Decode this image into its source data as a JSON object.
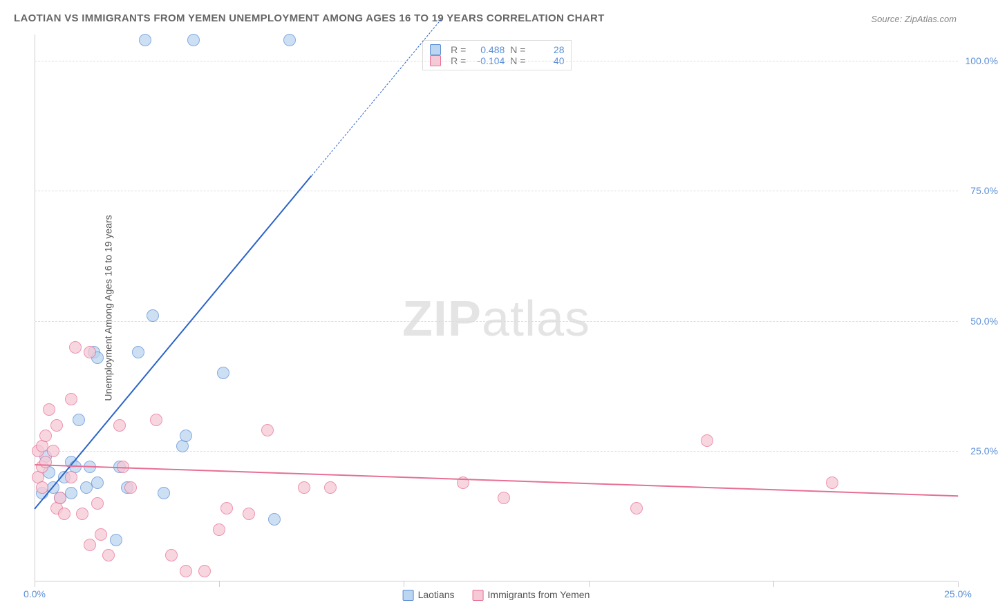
{
  "title": "LAOTIAN VS IMMIGRANTS FROM YEMEN UNEMPLOYMENT AMONG AGES 16 TO 19 YEARS CORRELATION CHART",
  "source": "Source: ZipAtlas.com",
  "y_label": "Unemployment Among Ages 16 to 19 years",
  "watermark_a": "ZIP",
  "watermark_b": "atlas",
  "chart": {
    "type": "scatter",
    "background_color": "#ffffff",
    "grid_color": "#dddddd",
    "axis_color": "#cccccc",
    "xlim": [
      0,
      25
    ],
    "ylim": [
      0,
      105
    ],
    "y_ticks": [
      25,
      50,
      75,
      100
    ],
    "y_tick_labels": [
      "25.0%",
      "50.0%",
      "75.0%",
      "100.0%"
    ],
    "x_ticks": [
      0,
      5,
      10,
      15,
      20,
      25
    ],
    "x_tick_labels": [
      "0.0%",
      "",
      "",
      "",
      "",
      "25.0%"
    ],
    "y_tick_color": "#5b8fd6",
    "x_tick_color": "#5b8fd6",
    "marker_radius": 9,
    "series": [
      {
        "name": "Laotians",
        "fill": "#bcd5f0",
        "stroke": "#5b8fd6",
        "points": [
          [
            0.2,
            17
          ],
          [
            0.3,
            24
          ],
          [
            0.4,
            21
          ],
          [
            0.5,
            18
          ],
          [
            0.7,
            16
          ],
          [
            0.8,
            20
          ],
          [
            1.0,
            17
          ],
          [
            1.0,
            23
          ],
          [
            1.1,
            22
          ],
          [
            1.2,
            31
          ],
          [
            1.4,
            18
          ],
          [
            1.5,
            22
          ],
          [
            1.6,
            44
          ],
          [
            1.7,
            43
          ],
          [
            1.7,
            19
          ],
          [
            2.2,
            8
          ],
          [
            2.3,
            22
          ],
          [
            2.5,
            18
          ],
          [
            2.8,
            44
          ],
          [
            3.2,
            51
          ],
          [
            3.5,
            17
          ],
          [
            3.0,
            104
          ],
          [
            4.0,
            26
          ],
          [
            4.1,
            28
          ],
          [
            4.3,
            104
          ],
          [
            5.1,
            40
          ],
          [
            6.5,
            12
          ],
          [
            6.9,
            104
          ]
        ],
        "trend": {
          "x1": 0,
          "y1": 14,
          "x2": 7.5,
          "y2": 78,
          "dash_after_x": 7.2,
          "dash_end_x": 11,
          "dash_end_y": 108,
          "color": "#2b63c9",
          "width": 2
        },
        "stats": {
          "R": "0.488",
          "N": "28"
        }
      },
      {
        "name": "Immigrants from Yemen",
        "fill": "#f6c9d6",
        "stroke": "#e76f94",
        "points": [
          [
            0.1,
            20
          ],
          [
            0.1,
            25
          ],
          [
            0.2,
            22
          ],
          [
            0.2,
            26
          ],
          [
            0.2,
            18
          ],
          [
            0.3,
            23
          ],
          [
            0.3,
            28
          ],
          [
            0.4,
            33
          ],
          [
            0.5,
            25
          ],
          [
            0.6,
            14
          ],
          [
            0.6,
            30
          ],
          [
            0.7,
            16
          ],
          [
            0.8,
            13
          ],
          [
            1.0,
            20
          ],
          [
            1.0,
            35
          ],
          [
            1.1,
            45
          ],
          [
            1.5,
            44
          ],
          [
            1.3,
            13
          ],
          [
            1.5,
            7
          ],
          [
            1.7,
            15
          ],
          [
            1.8,
            9
          ],
          [
            2.0,
            5
          ],
          [
            2.3,
            30
          ],
          [
            2.4,
            22
          ],
          [
            2.6,
            18
          ],
          [
            3.3,
            31
          ],
          [
            3.7,
            5
          ],
          [
            4.1,
            2
          ],
          [
            4.6,
            2
          ],
          [
            5.0,
            10
          ],
          [
            5.2,
            14
          ],
          [
            5.8,
            13
          ],
          [
            6.3,
            29
          ],
          [
            7.3,
            18
          ],
          [
            8.0,
            18
          ],
          [
            11.6,
            19
          ],
          [
            12.7,
            16
          ],
          [
            16.3,
            14
          ],
          [
            18.2,
            27
          ],
          [
            21.6,
            19
          ]
        ],
        "trend": {
          "x1": 0,
          "y1": 22.5,
          "x2": 25,
          "y2": 16.5,
          "color": "#e76f94",
          "width": 2
        },
        "stats": {
          "R": "-0.104",
          "N": "40"
        }
      }
    ]
  },
  "legend": [
    {
      "label": "Laotians",
      "fill": "#bcd5f0",
      "stroke": "#5b8fd6"
    },
    {
      "label": "Immigrants from Yemen",
      "fill": "#f6c9d6",
      "stroke": "#e76f94"
    }
  ],
  "stats_labels": {
    "R": "R  =",
    "N": "N  ="
  }
}
